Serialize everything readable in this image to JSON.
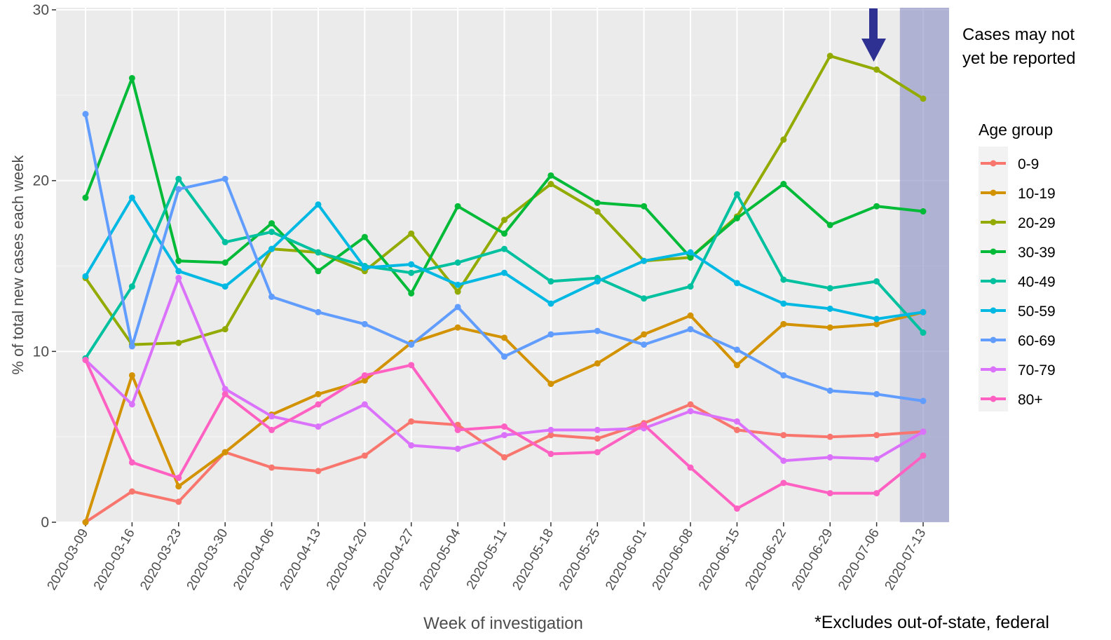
{
  "chart_data": {
    "type": "line",
    "xlabel": "Week of investigation",
    "ylabel": "% of total new cases each week",
    "ylim": [
      0,
      30
    ],
    "yticks": [
      0,
      10,
      20,
      30
    ],
    "grid": true,
    "legend_title": "Age group",
    "legend_placement": "right",
    "categories": [
      "2020-03-09",
      "2020-03-16",
      "2020-03-23",
      "2020-03-30",
      "2020-04-06",
      "2020-04-13",
      "2020-04-20",
      "2020-04-27",
      "2020-05-04",
      "2020-05-11",
      "2020-05-18",
      "2020-05-25",
      "2020-06-01",
      "2020-06-08",
      "2020-06-15",
      "2020-06-22",
      "2020-06-29",
      "2020-07-06",
      "2020-07-13"
    ],
    "shaded_region": {
      "from": "2020-07-13",
      "color": "#8f93c4"
    },
    "series": [
      {
        "name": "0-9",
        "color": "#F8766D",
        "values": [
          0,
          1.8,
          1.2,
          4.1,
          3.2,
          3.0,
          3.9,
          5.9,
          5.7,
          3.8,
          5.1,
          4.9,
          5.8,
          6.9,
          5.4,
          5.1,
          5.0,
          5.1,
          5.3
        ]
      },
      {
        "name": "10-19",
        "color": "#D39200",
        "values": [
          0,
          8.6,
          2.1,
          4.1,
          6.3,
          7.5,
          8.3,
          10.5,
          11.4,
          10.8,
          8.1,
          9.3,
          11.0,
          12.1,
          9.2,
          11.6,
          11.4,
          11.6,
          12.3
        ]
      },
      {
        "name": "20-29",
        "color": "#93AA00",
        "values": [
          14.3,
          10.4,
          10.5,
          11.3,
          16.0,
          15.8,
          14.7,
          16.9,
          13.5,
          17.7,
          19.8,
          18.2,
          15.3,
          15.5,
          17.9,
          22.4,
          27.3,
          26.5,
          24.8
        ]
      },
      {
        "name": "30-39",
        "color": "#00BA38",
        "values": [
          19.0,
          26.0,
          15.3,
          15.2,
          17.5,
          14.7,
          16.7,
          13.4,
          18.5,
          16.9,
          20.3,
          18.7,
          18.5,
          15.5,
          17.8,
          19.8,
          17.4,
          18.5,
          18.2
        ]
      },
      {
        "name": "40-49",
        "color": "#00C19F",
        "values": [
          9.6,
          13.8,
          20.1,
          16.4,
          17.0,
          15.8,
          15.0,
          14.6,
          15.2,
          16.0,
          14.1,
          14.3,
          13.1,
          13.8,
          19.2,
          14.2,
          13.7,
          14.1,
          11.1
        ]
      },
      {
        "name": "50-59",
        "color": "#00B9E3",
        "values": [
          14.4,
          19.0,
          14.7,
          13.8,
          16.0,
          18.6,
          14.9,
          15.1,
          13.9,
          14.6,
          12.8,
          14.1,
          15.3,
          15.8,
          14.0,
          12.8,
          12.5,
          11.9,
          12.3
        ]
      },
      {
        "name": "60-69",
        "color": "#619CFF",
        "values": [
          23.9,
          10.3,
          19.5,
          20.1,
          13.2,
          12.3,
          11.6,
          10.4,
          12.6,
          9.7,
          11.0,
          11.2,
          10.4,
          11.3,
          10.1,
          8.6,
          7.7,
          7.5,
          7.1
        ]
      },
      {
        "name": "70-79",
        "color": "#DB72FB",
        "values": [
          9.5,
          6.9,
          14.3,
          7.8,
          6.2,
          5.6,
          6.9,
          4.5,
          4.3,
          5.1,
          5.4,
          5.4,
          5.5,
          6.5,
          5.9,
          3.6,
          3.8,
          3.7,
          5.3
        ]
      },
      {
        "name": "80+",
        "color": "#FF61C3",
        "values": [
          9.5,
          3.5,
          2.6,
          7.5,
          5.4,
          6.9,
          8.6,
          9.2,
          5.4,
          5.6,
          4.0,
          4.1,
          5.7,
          3.2,
          0.8,
          2.3,
          1.7,
          1.7,
          3.9
        ]
      }
    ]
  },
  "annotations": {
    "cases_note": "Cases may not\nyet be reported",
    "arrow_color": "#2e3192",
    "footnote": "*Excludes out-of-state, federal"
  }
}
